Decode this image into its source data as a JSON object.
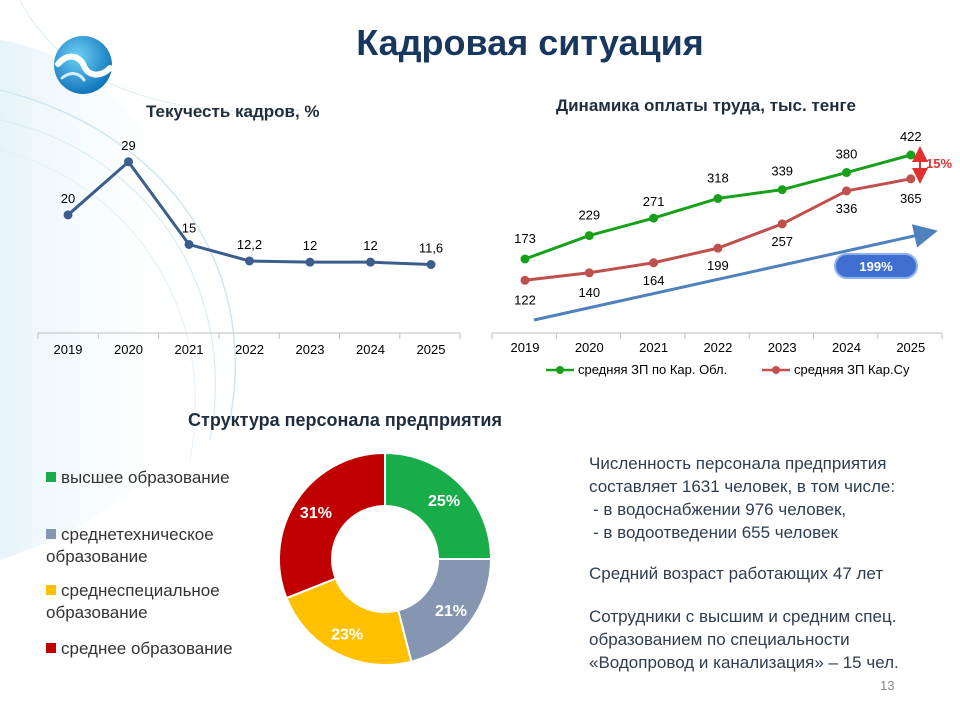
{
  "title": "Кадровая ситуация",
  "page_number": "13",
  "colors": {
    "title": "#17375e",
    "line1": "#3c5e8c",
    "green": "#18a01a",
    "red": "#c0504d",
    "blue_arrow": "#4f81bd"
  },
  "turnover": {
    "title": "Текучесть кадров, %",
    "chart_data": {
      "type": "line",
      "title": "Текучесть кадров, %",
      "x": [
        "2019",
        "2020",
        "2021",
        "2022",
        "2023",
        "2024",
        "2025"
      ],
      "values": [
        20,
        29,
        15,
        12.2,
        12,
        12,
        11.6
      ],
      "labels": [
        "20",
        "29",
        "15",
        "12,2",
        "12",
        "12",
        "11,6"
      ],
      "ylim": [
        0,
        35
      ],
      "grid": false
    }
  },
  "salary": {
    "title": "Динамика оплаты труда, тыс. тенге",
    "percent_growth": "199%",
    "gap": "15%",
    "chart_data": {
      "type": "line",
      "title": "Динамика оплаты труда, тыс. тенге",
      "x": [
        "2019",
        "2020",
        "2021",
        "2022",
        "2023",
        "2024",
        "2025"
      ],
      "ylim": [
        100,
        440
      ],
      "legend": "bottom",
      "series": [
        {
          "name": "средняя ЗП по Кар. Обл.",
          "values": [
            173,
            229,
            271,
            318,
            339,
            380,
            422
          ],
          "color": "#18a01a"
        },
        {
          "name": "средняя ЗП Кар.Су",
          "values": [
            122,
            140,
            164,
            199,
            257,
            336,
            365
          ],
          "color": "#c0504d"
        }
      ]
    }
  },
  "staff": {
    "title": "Структура персонала предприятия",
    "chart_data": {
      "type": "pie",
      "title": "Структура персонала предприятия",
      "donut": true,
      "slices": [
        {
          "name": "высшее образование",
          "value": 25,
          "label": "25%",
          "color": "#19ad4a"
        },
        {
          "name": "среднетехническое образование",
          "value": 21,
          "label": "21%",
          "color": "#8496b0"
        },
        {
          "name": "среднеспециальное образование",
          "value": 23,
          "label": "23%",
          "color": "#ffc000"
        },
        {
          "name": "среднее образование",
          "value": 31,
          "label": "31%",
          "color": "#c00000"
        }
      ],
      "legend": "left"
    }
  },
  "info": {
    "line1": "Численность персонала предприятия",
    "line2": "составляет 1631 человек, в том числе:",
    "line3": "-  в водоснабжении 976 человек,",
    "line4": "-  в водоотведении 655 человек",
    "line5": "Средний возраст работающих 47 лет",
    "line6": "Сотрудники с высшим и средним спец.",
    "line7": "образованием по специальности",
    "line8": "«Водопровод и канализация» – 15 чел."
  }
}
